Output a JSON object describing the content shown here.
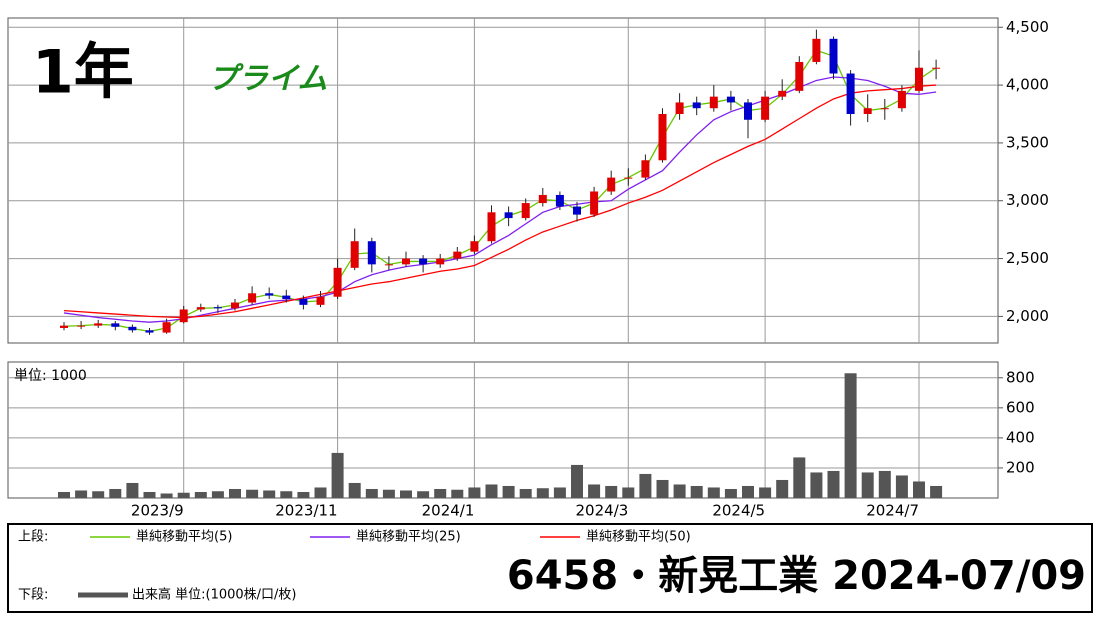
{
  "header": {
    "period": "1年",
    "market": "プライム"
  },
  "chart_data": {
    "type": "candlestick",
    "categories": [
      null,
      null,
      null,
      null,
      null,
      null,
      null,
      "2023/9",
      null,
      null,
      null,
      null,
      null,
      null,
      null,
      null,
      "2023/11",
      null,
      null,
      null,
      null,
      null,
      null,
      null,
      "2024/1",
      null,
      null,
      null,
      null,
      null,
      null,
      null,
      null,
      "2024/3",
      null,
      null,
      null,
      null,
      null,
      null,
      null,
      "2024/5",
      null,
      null,
      null,
      null,
      null,
      null,
      null,
      null,
      "2024/7",
      null
    ],
    "open": [
      1900,
      1920,
      1920,
      1940,
      1910,
      1880,
      1860,
      1950,
      2060,
      2080,
      2070,
      2120,
      2200,
      2180,
      2150,
      2100,
      2170,
      2420,
      2650,
      2450,
      2450,
      2500,
      2450,
      2500,
      2560,
      2650,
      2900,
      2850,
      2980,
      3050,
      2950,
      2880,
      3080,
      3200,
      3200,
      3350,
      3750,
      3850,
      3800,
      3900,
      3850,
      3700,
      3900,
      3950,
      4200,
      4400,
      4100,
      3750,
      3800,
      3800,
      3950,
      4150
    ],
    "high": [
      1950,
      1960,
      1970,
      1960,
      1930,
      1900,
      1980,
      2090,
      2110,
      2100,
      2150,
      2260,
      2250,
      2230,
      2180,
      2220,
      2500,
      2760,
      2680,
      2520,
      2560,
      2530,
      2540,
      2600,
      2700,
      2960,
      2950,
      3020,
      3110,
      3080,
      2990,
      3120,
      3260,
      3280,
      3400,
      3800,
      3930,
      3900,
      4000,
      3950,
      3880,
      3950,
      4050,
      4250,
      4480,
      4420,
      4130,
      3920,
      3880,
      4000,
      4300,
      4220
    ],
    "low": [
      1880,
      1890,
      1900,
      1880,
      1860,
      1840,
      1850,
      1940,
      2040,
      2030,
      2050,
      2100,
      2150,
      2120,
      2060,
      2080,
      2150,
      2400,
      2380,
      2400,
      2430,
      2380,
      2420,
      2480,
      2540,
      2630,
      2780,
      2830,
      2950,
      2920,
      2820,
      2860,
      3050,
      3130,
      3180,
      3330,
      3700,
      3740,
      3770,
      3780,
      3540,
      3680,
      3870,
      3930,
      4180,
      4050,
      3650,
      3680,
      3700,
      3770,
      3930,
      4050
    ],
    "close": [
      1920,
      1920,
      1940,
      1910,
      1880,
      1860,
      1950,
      2060,
      2080,
      2070,
      2120,
      2200,
      2180,
      2150,
      2100,
      2170,
      2420,
      2650,
      2450,
      2450,
      2500,
      2450,
      2500,
      2560,
      2650,
      2900,
      2850,
      2980,
      3050,
      2950,
      2880,
      3080,
      3200,
      3200,
      3350,
      3750,
      3850,
      3800,
      3900,
      3850,
      3700,
      3900,
      3950,
      4200,
      4400,
      4100,
      3750,
      3800,
      3800,
      3950,
      4150,
      4150
    ],
    "up_color": "#e00000",
    "down_color": "#0000cc",
    "ylim": [
      1770,
      4580
    ],
    "yticks": [
      {
        "value": 2000,
        "label": "2,000"
      },
      {
        "value": 2500,
        "label": "2,500"
      },
      {
        "value": 3000,
        "label": "3,000"
      },
      {
        "value": 3500,
        "label": "3,500"
      },
      {
        "value": 4000,
        "label": "4,000"
      },
      {
        "value": 4500,
        "label": "4,500"
      }
    ],
    "grid": true,
    "legend_label": "上段:",
    "series": [
      {
        "name": "単純移動平均(5)",
        "color": "#66c800",
        "values": [
          1915,
          1920,
          1930,
          1925,
          1895,
          1870,
          1900,
          2000,
          2070,
          2075,
          2100,
          2160,
          2190,
          2165,
          2125,
          2135,
          2300,
          2540,
          2550,
          2450,
          2475,
          2475,
          2475,
          2530,
          2600,
          2780,
          2870,
          2920,
          3010,
          3000,
          2920,
          2980,
          3140,
          3200,
          3280,
          3550,
          3800,
          3830,
          3850,
          3880,
          3780,
          3800,
          3920,
          4080,
          4300,
          4250,
          3920,
          3780,
          3800,
          3880,
          4050,
          4150
        ]
      },
      {
        "name": "単純移動平均(25)",
        "color": "#8020f0",
        "values": [
          2030,
          2010,
          1990,
          1975,
          1960,
          1950,
          1960,
          1980,
          2010,
          2040,
          2070,
          2100,
          2130,
          2140,
          2150,
          2170,
          2210,
          2300,
          2360,
          2400,
          2430,
          2450,
          2470,
          2500,
          2530,
          2620,
          2700,
          2800,
          2900,
          2950,
          2970,
          2990,
          3000,
          3100,
          3180,
          3260,
          3420,
          3570,
          3700,
          3770,
          3820,
          3870,
          3920,
          3980,
          4040,
          4070,
          4060,
          4040,
          3990,
          3930,
          3920,
          3940
        ]
      },
      {
        "name": "単純移動平均(50)",
        "color": "#ff0000",
        "values": [
          2050,
          2040,
          2030,
          2020,
          2010,
          2000,
          1995,
          1990,
          2000,
          2020,
          2040,
          2070,
          2100,
          2130,
          2160,
          2190,
          2220,
          2250,
          2280,
          2300,
          2330,
          2360,
          2390,
          2410,
          2440,
          2510,
          2580,
          2660,
          2730,
          2780,
          2830,
          2870,
          2920,
          2980,
          3030,
          3090,
          3170,
          3250,
          3330,
          3400,
          3470,
          3530,
          3620,
          3710,
          3800,
          3880,
          3930,
          3950,
          3960,
          3970,
          3990,
          4000
        ]
      }
    ],
    "volume": {
      "legend_label": "下段:",
      "name": "出来高 単位:(1000株/口/枚)",
      "unit_label": "単位: 1000",
      "color": "#555555",
      "values": [
        40,
        50,
        45,
        60,
        100,
        40,
        30,
        35,
        40,
        45,
        60,
        55,
        50,
        45,
        40,
        70,
        300,
        100,
        60,
        55,
        50,
        45,
        60,
        55,
        70,
        90,
        80,
        60,
        65,
        70,
        220,
        90,
        80,
        70,
        160,
        120,
        90,
        80,
        70,
        60,
        80,
        70,
        120,
        270,
        170,
        180,
        830,
        170,
        180,
        150,
        110,
        80
      ],
      "ylim": [
        0,
        905
      ],
      "yticks": [
        200,
        400,
        600,
        800
      ]
    },
    "title": "6458・新晃工業 2024-07/09"
  }
}
